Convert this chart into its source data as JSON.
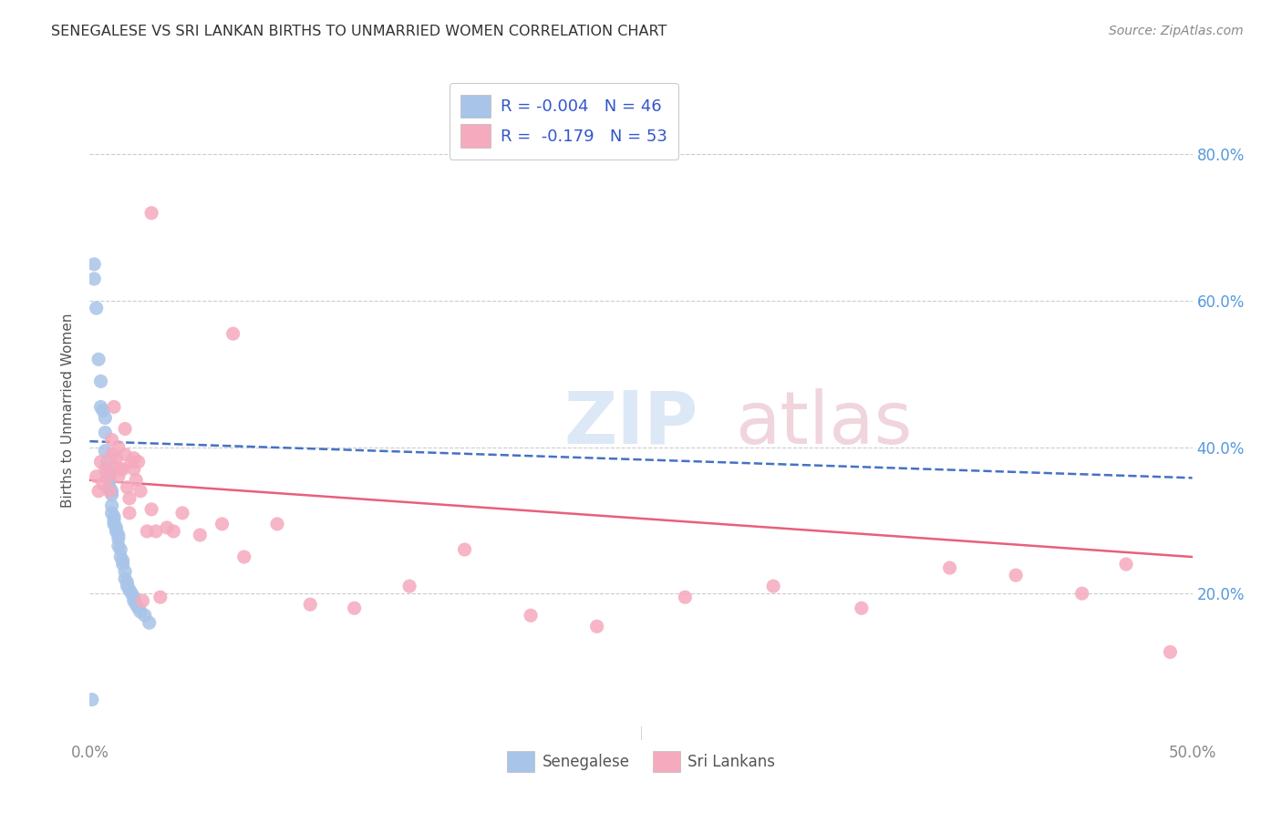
{
  "title": "SENEGALESE VS SRI LANKAN BIRTHS TO UNMARRIED WOMEN CORRELATION CHART",
  "source": "Source: ZipAtlas.com",
  "ylabel": "Births to Unmarried Women",
  "xlim": [
    0.0,
    0.5
  ],
  "ylim": [
    0.0,
    0.9
  ],
  "legend_r_senegalese": "-0.004",
  "legend_n_senegalese": "46",
  "legend_r_srilankans": "-0.179",
  "legend_n_srilankans": "53",
  "senegalese_color": "#a8c4e8",
  "srilankans_color": "#f5aabe",
  "trend_senegalese_color": "#4472c4",
  "trend_srilankans_color": "#e8607a",
  "legend_text_color": "#3355cc",
  "title_color": "#333333",
  "ylabel_color": "#555555",
  "tick_color": "#888888",
  "right_tick_color": "#5599dd",
  "grid_color": "#cccccc",
  "senegalese_x": [
    0.001,
    0.002,
    0.002,
    0.003,
    0.004,
    0.005,
    0.005,
    0.006,
    0.007,
    0.007,
    0.007,
    0.008,
    0.008,
    0.009,
    0.009,
    0.009,
    0.009,
    0.01,
    0.01,
    0.01,
    0.01,
    0.011,
    0.011,
    0.011,
    0.012,
    0.012,
    0.013,
    0.013,
    0.013,
    0.014,
    0.014,
    0.015,
    0.015,
    0.016,
    0.016,
    0.017,
    0.017,
    0.018,
    0.019,
    0.02,
    0.02,
    0.021,
    0.022,
    0.023,
    0.025,
    0.027
  ],
  "senegalese_y": [
    0.055,
    0.65,
    0.63,
    0.59,
    0.52,
    0.49,
    0.455,
    0.45,
    0.44,
    0.42,
    0.395,
    0.38,
    0.37,
    0.365,
    0.36,
    0.355,
    0.345,
    0.34,
    0.335,
    0.32,
    0.31,
    0.305,
    0.3,
    0.295,
    0.29,
    0.285,
    0.28,
    0.275,
    0.265,
    0.26,
    0.25,
    0.245,
    0.24,
    0.23,
    0.22,
    0.215,
    0.21,
    0.205,
    0.2,
    0.195,
    0.19,
    0.185,
    0.18,
    0.175,
    0.17,
    0.16
  ],
  "srilankans_x": [
    0.003,
    0.004,
    0.005,
    0.006,
    0.007,
    0.008,
    0.009,
    0.01,
    0.01,
    0.011,
    0.011,
    0.012,
    0.013,
    0.013,
    0.014,
    0.015,
    0.016,
    0.016,
    0.017,
    0.018,
    0.018,
    0.019,
    0.02,
    0.02,
    0.021,
    0.022,
    0.023,
    0.024,
    0.026,
    0.028,
    0.03,
    0.032,
    0.035,
    0.038,
    0.042,
    0.05,
    0.06,
    0.07,
    0.085,
    0.1,
    0.12,
    0.145,
    0.17,
    0.2,
    0.23,
    0.27,
    0.31,
    0.35,
    0.39,
    0.42,
    0.45,
    0.47,
    0.49
  ],
  "srilankans_y": [
    0.36,
    0.34,
    0.38,
    0.35,
    0.37,
    0.36,
    0.34,
    0.39,
    0.41,
    0.375,
    0.455,
    0.385,
    0.36,
    0.4,
    0.37,
    0.37,
    0.39,
    0.425,
    0.345,
    0.33,
    0.31,
    0.38,
    0.385,
    0.37,
    0.355,
    0.38,
    0.34,
    0.19,
    0.285,
    0.315,
    0.285,
    0.195,
    0.29,
    0.285,
    0.31,
    0.28,
    0.295,
    0.25,
    0.295,
    0.185,
    0.18,
    0.21,
    0.26,
    0.17,
    0.155,
    0.195,
    0.21,
    0.18,
    0.235,
    0.225,
    0.2,
    0.24,
    0.12
  ],
  "srilankans_outlier_x": [
    0.028
  ],
  "srilankans_outlier_y": [
    0.72
  ],
  "srilankans_outlier2_x": [
    0.065
  ],
  "srilankans_outlier2_y": [
    0.555
  ],
  "senegalese_trend_x0": 0.0,
  "senegalese_trend_x1": 0.5,
  "senegalese_trend_y0": 0.408,
  "senegalese_trend_y1": 0.358,
  "srilankans_trend_x0": 0.0,
  "srilankans_trend_x1": 0.5,
  "srilankans_trend_y0": 0.355,
  "srilankans_trend_y1": 0.25
}
